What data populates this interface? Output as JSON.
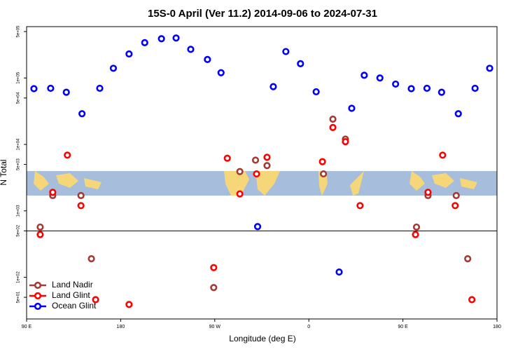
{
  "chart_data": {
    "type": "scatter",
    "title": "15S-0 April (Ver 11.2)   2014-09-06 to 2024-07-31",
    "x_label": "Longitude (deg E)",
    "y_label": "N Total",
    "xlim": [
      90,
      540
    ],
    "xticks": [
      {
        "value": 90,
        "label": "90 E"
      },
      {
        "value": 180,
        "label": "180"
      },
      {
        "value": 270,
        "label": "90 W"
      },
      {
        "value": 360,
        "label": "0"
      },
      {
        "value": 450,
        "label": "90 E"
      },
      {
        "value": 540,
        "label": "180"
      }
    ],
    "ylim": [
      23.6,
      593000
    ],
    "log_y": true,
    "yticks": [
      {
        "value": 500000,
        "label": "5e+05"
      },
      {
        "value": 100000,
        "label": "1e+05"
      },
      {
        "value": 50000,
        "label": "5e+04"
      },
      {
        "value": 10000,
        "label": "1e+04"
      },
      {
        "value": 5000,
        "label": "5e+03"
      },
      {
        "value": 1000,
        "label": "1e+03"
      },
      {
        "value": 500,
        "label": "5e+02"
      },
      {
        "value": 100,
        "label": "1e+02"
      },
      {
        "value": 50,
        "label": "5e+01"
      }
    ],
    "hline": 500,
    "legend": "bottom-left",
    "series": [
      {
        "name": "Land Nadir",
        "color": "#a33a33",
        "x": [
          103,
          115,
          142,
          152,
          269,
          294,
          309,
          320,
          374,
          383,
          395,
          463,
          474,
          501,
          512
        ],
        "values": [
          570,
          1700,
          1700,
          190,
          70,
          3900,
          5800,
          4800,
          3600,
          24000,
          12000,
          570,
          1700,
          1700,
          190
        ]
      },
      {
        "name": "Land Glint",
        "color": "#ff0000",
        "x": [
          103,
          115,
          129,
          142,
          156,
          188,
          269,
          282,
          294,
          310,
          320,
          373,
          383,
          395,
          409,
          462,
          474,
          488,
          500,
          516
        ],
        "values": [
          440,
          1900,
          6900,
          1200,
          46,
          39,
          140,
          6200,
          1800,
          3600,
          6400,
          5500,
          18000,
          11000,
          1200,
          440,
          1900,
          6900,
          1200,
          46
        ]
      },
      {
        "name": "Ocean Glint",
        "color": "#0000ff",
        "x": [
          97,
          113,
          128,
          143,
          160,
          173,
          188,
          203,
          219,
          233,
          247,
          263,
          276,
          311,
          326,
          338,
          352,
          367,
          389,
          401,
          413,
          428,
          443,
          458,
          473,
          487,
          503,
          519,
          533
        ],
        "values": [
          69000,
          70000,
          61000,
          29000,
          70000,
          140000,
          230000,
          340000,
          390000,
          400000,
          270000,
          190000,
          120000,
          580,
          74000,
          250000,
          164000,
          62000,
          120,
          35000,
          110000,
          100000,
          81000,
          69000,
          70000,
          61000,
          29000,
          70000,
          140000
        ]
      }
    ]
  }
}
